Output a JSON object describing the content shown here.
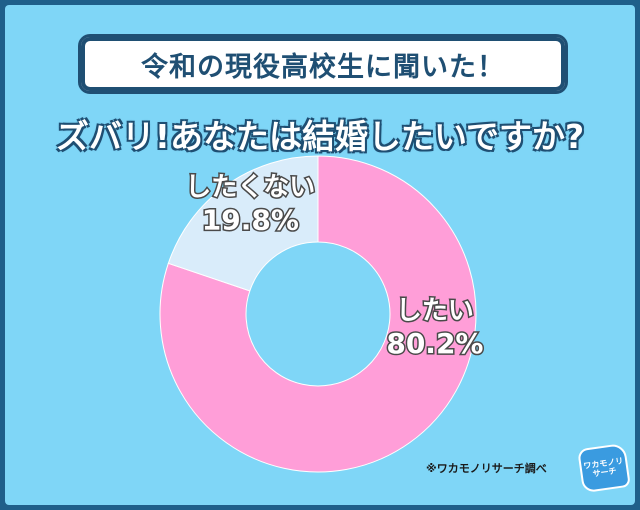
{
  "header": {
    "banner": "令和の現役高校生に聞いた！",
    "question": "ズバリ!あなたは結婚したいですか?"
  },
  "chart_data": {
    "type": "pie",
    "categories": [
      "したい",
      "したくない"
    ],
    "values": [
      80.2,
      19.8
    ],
    "value_labels": [
      "80.2%",
      "19.8%"
    ],
    "colors": [
      "#ff9ed8",
      "#d9ecfa"
    ],
    "donut": true
  },
  "footer": {
    "source": "※ワカモノリサーチ調べ",
    "logo_text": "ワカモノリサーチ"
  }
}
